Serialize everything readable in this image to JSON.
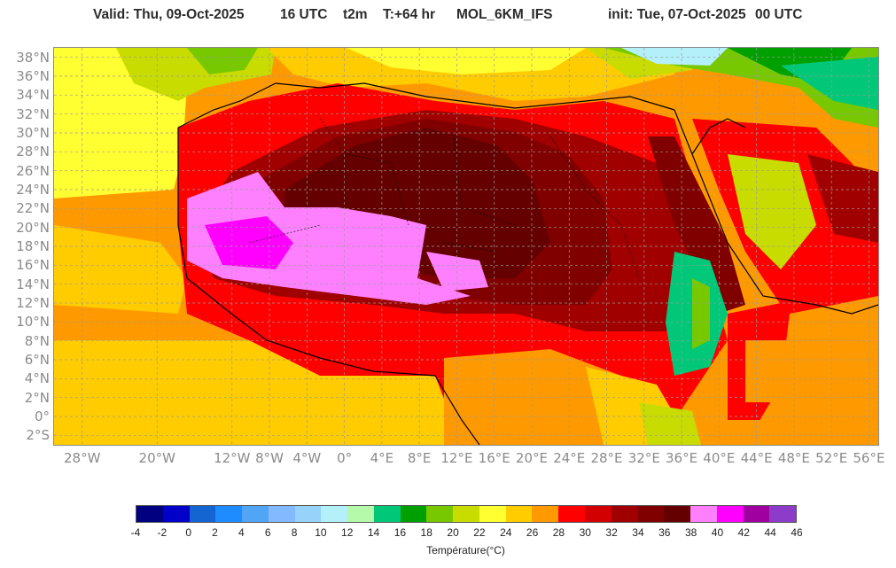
{
  "header": {
    "valid": "Valid: Thu, 09-Oct-2025",
    "hour": "16 UTC",
    "variable": "t2m",
    "lead": "T:+64 hr",
    "model": "MOL_6KM_IFS",
    "init": "init: Tue, 07-Oct-2025",
    "init_hour": "00 UTC"
  },
  "map": {
    "lat_labels": [
      "38°N",
      "36°N",
      "34°N",
      "32°N",
      "30°N",
      "28°N",
      "26°N",
      "24°N",
      "22°N",
      "20°N",
      "18°N",
      "16°N",
      "14°N",
      "12°N",
      "10°N",
      "8°N",
      "6°N",
      "4°N",
      "2°N",
      "0°",
      "2°S"
    ],
    "lon_labels": [
      "28°W",
      "20°W",
      "12°W",
      "8°W",
      "4°W",
      "0°",
      "4°E",
      "8°E",
      "12°E",
      "16°E",
      "20°E",
      "24°E",
      "28°E",
      "32°E",
      "36°E",
      "40°E",
      "44°E",
      "48°E",
      "52°E",
      "56°E"
    ],
    "lat_range": [
      -3,
      39
    ],
    "lon_range": [
      -31,
      57
    ],
    "colors": {
      "ocean_hot": "#ff9900",
      "ocean_warm": "#ffcc00",
      "sahara_core": "#6b0000",
      "coastline": "#000000",
      "grid": "#9a9a9a"
    }
  },
  "legend": {
    "title": "Température(°C)",
    "ticks": [
      "-4",
      "-2",
      "0",
      "2",
      "4",
      "6",
      "8",
      "10",
      "12",
      "14",
      "16",
      "18",
      "20",
      "22",
      "24",
      "26",
      "28",
      "30",
      "32",
      "34",
      "36",
      "38",
      "40",
      "42",
      "44",
      "46"
    ],
    "colors": [
      "#000080",
      "#0000c8",
      "#1464d2",
      "#1e8cff",
      "#50a5f5",
      "#82b9ff",
      "#96d2fa",
      "#b4f0fa",
      "#b4faaa",
      "#00c878",
      "#00a000",
      "#78c800",
      "#c8dc00",
      "#ffff32",
      "#ffcc00",
      "#ff9900",
      "#ff0000",
      "#d20000",
      "#a00000",
      "#800000",
      "#640000",
      "#ff80ff",
      "#ff00ff",
      "#a000a0",
      "#8c3cc8"
    ]
  }
}
